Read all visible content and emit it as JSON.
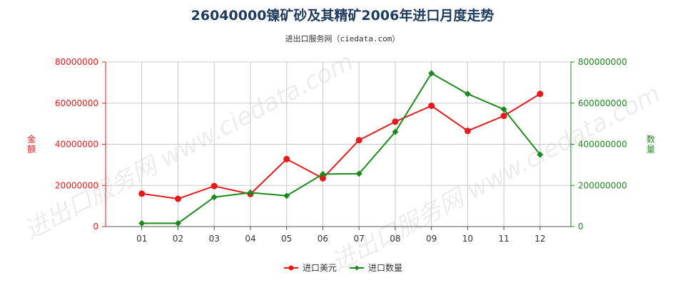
{
  "chart_data": {
    "type": "line",
    "title": "26040000镍矿砂及其精矿2006年进口月度走势",
    "subtitle": "进出口服务网（ciedata.com）",
    "watermark": "进出口服务网 www.ciedata.com",
    "categories": [
      "01",
      "02",
      "03",
      "04",
      "05",
      "06",
      "07",
      "08",
      "09",
      "10",
      "11",
      "12"
    ],
    "y_left": {
      "label": "金额",
      "lim": [
        0,
        80000000
      ],
      "ticks": [
        "0",
        "20000000",
        "40000000",
        "60000000",
        "80000000"
      ],
      "color": "#e8191b"
    },
    "y_right": {
      "label": "数量",
      "lim": [
        0,
        800000000
      ],
      "ticks": [
        "0",
        "200000000",
        "400000000",
        "600000000",
        "800000000"
      ],
      "color": "#1a8a1a"
    },
    "series": [
      {
        "name": "进口美元",
        "axis": "left",
        "color": "#e8191b",
        "marker": "circle",
        "values": [
          16000000,
          13500000,
          19700000,
          15800000,
          32800000,
          23500000,
          42000000,
          51000000,
          58700000,
          46500000,
          53800000,
          64500000
        ]
      },
      {
        "name": "进口数量",
        "axis": "right",
        "color": "#1a8a1a",
        "marker": "diamond",
        "values": [
          16000000,
          16000000,
          143000000,
          165000000,
          150000000,
          255000000,
          257000000,
          460000000,
          745000000,
          645000000,
          570000000,
          350000000
        ]
      }
    ],
    "grid": true,
    "legend_position": "bottom"
  }
}
